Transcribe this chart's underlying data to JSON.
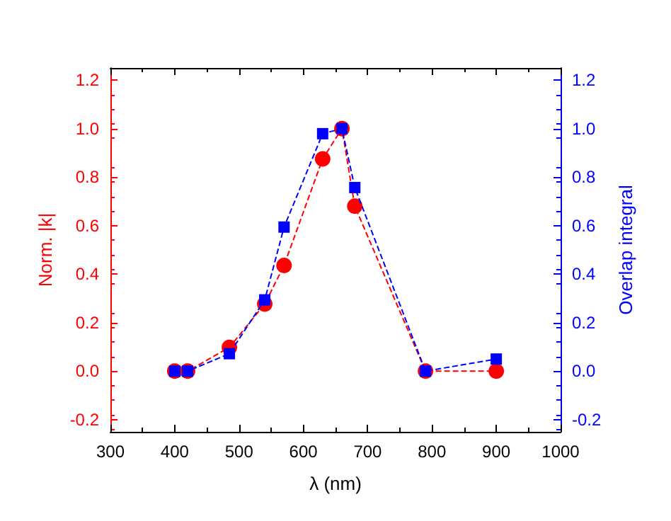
{
  "chart_data": {
    "type": "line",
    "xlabel": "λ (nm)",
    "ylabel": "Norm. |k|",
    "y2label": "Overlap integral",
    "x": [
      400,
      420,
      485,
      540,
      570,
      630,
      660,
      680,
      790,
      900
    ],
    "series": [
      {
        "color": "#ff0000",
        "marker": "circle",
        "line_style": "dashed",
        "values": [
          0,
          0,
          0.098,
          0.277,
          0.436,
          0.875,
          1.0,
          0.68,
          0,
          0
        ]
      },
      {
        "color": "#0000ff",
        "marker": "square",
        "line_style": "dashed",
        "axis": "y2",
        "values": [
          0,
          0,
          0.072,
          0.294,
          0.594,
          0.979,
          1.0,
          0.757,
          0,
          0.05
        ]
      }
    ],
    "xlim": [
      300,
      1000
    ],
    "xticks": [
      300,
      400,
      500,
      600,
      700,
      800,
      900,
      {
        "value": 1000,
        "label": "1000"
      }
    ],
    "ylim": [
      -0.25,
      1.25
    ],
    "yticks": [
      -0.2,
      {
        "value": 0,
        "label": "0.0"
      },
      0.2,
      0.4,
      0.6,
      0.8,
      {
        "value": 1,
        "label": "1.0"
      },
      1.2
    ],
    "y2lim": [
      -0.25,
      1.25
    ],
    "y2ticks": [
      -0.2,
      {
        "value": 0,
        "label": "0.0"
      },
      0.2,
      0.4,
      0.6,
      0.8,
      {
        "value": 1,
        "label": "1.0"
      },
      1.2
    ]
  }
}
